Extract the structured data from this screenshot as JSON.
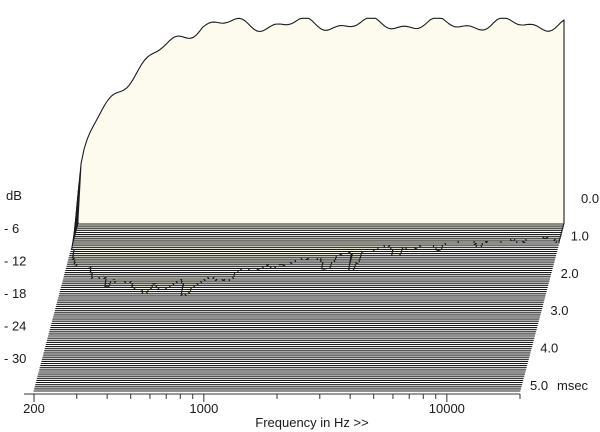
{
  "chart_data": {
    "type": "waterfall",
    "xlabel": "Frequency in Hz >>",
    "x_scale": "log",
    "xlim": [
      200,
      20000
    ],
    "x_ticks": [
      {
        "value": 200,
        "label": "200"
      },
      {
        "value": 1000,
        "label": "1000"
      },
      {
        "value": 10000,
        "label": "10000"
      }
    ],
    "ylabel": "dB",
    "y_ticks": [
      {
        "value": -6,
        "label": "- 6"
      },
      {
        "value": -12,
        "label": "- 12"
      },
      {
        "value": -18,
        "label": "- 18"
      },
      {
        "value": -24,
        "label": "- 24"
      },
      {
        "value": -30,
        "label": "- 30"
      }
    ],
    "ylim": [
      -33,
      0
    ],
    "zlabel": "msec",
    "zlim": [
      0,
      5
    ],
    "z_ticks": [
      {
        "value": 0,
        "label": "0.0"
      },
      {
        "value": 1,
        "label": "1.0"
      },
      {
        "value": 2,
        "label": "2.0"
      },
      {
        "value": 3,
        "label": "3.0"
      },
      {
        "value": 4,
        "label": "4.0"
      },
      {
        "value": 5,
        "label": "5.0"
      }
    ],
    "slice_count": 80,
    "colors": {
      "fill": "#fdfbee",
      "line": "#1c1c1c",
      "axis": "#333333"
    }
  }
}
